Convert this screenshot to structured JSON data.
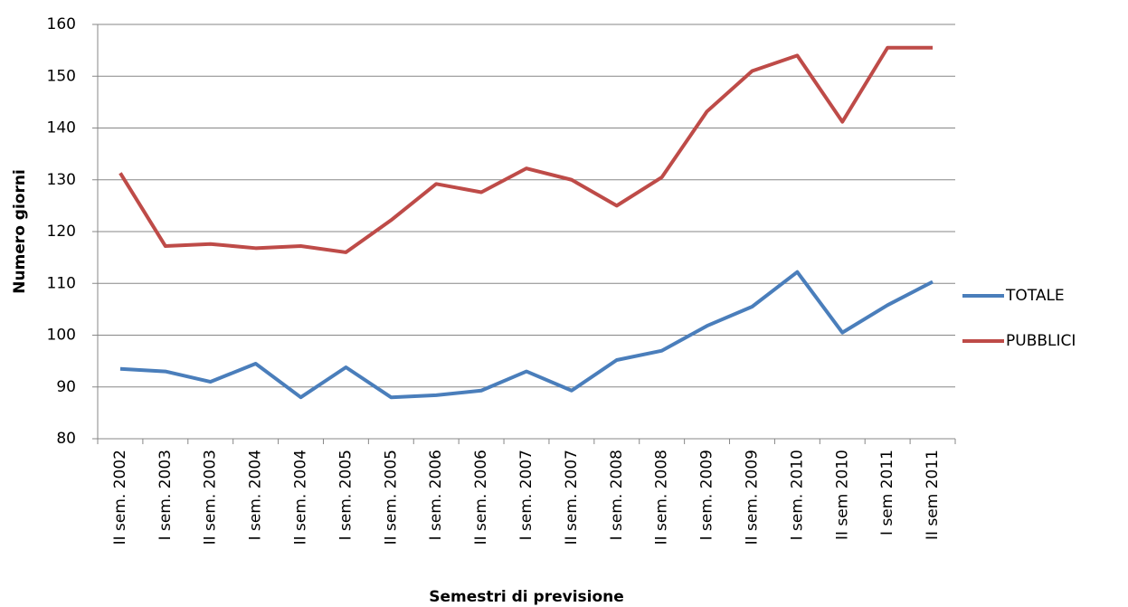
{
  "chart_data": {
    "type": "line",
    "y_label": "Numero giorni",
    "x_label": "Semestri di previsione",
    "categories": [
      "II sem. 2002",
      "I sem. 2003",
      "II sem. 2003",
      "I sem. 2004",
      "II sem. 2004",
      "I sem. 2005",
      "II sem. 2005",
      "I sem. 2006",
      "II sem. 2006",
      "I sem. 2007",
      "II sem. 2007",
      "I sem. 2008",
      "II sem. 2008",
      "I sem. 2009",
      "II sem. 2009",
      "I sem. 2010",
      "II sem 2010",
      "I sem 2011",
      "II sem 2011"
    ],
    "series": [
      {
        "name": "TOTALE",
        "color": "#4a7ebb",
        "values": [
          93.5,
          93,
          91,
          94.5,
          88,
          93.8,
          88,
          88.4,
          89.3,
          93,
          89.3,
          95.2,
          97,
          101.8,
          105.5,
          112.2,
          100.5,
          105.8,
          110.3
        ]
      },
      {
        "name": "PUBBLICI",
        "color": "#be4b48",
        "values": [
          131.3,
          117.2,
          117.6,
          116.8,
          117.2,
          116,
          122.2,
          129.2,
          127.6,
          132.2,
          130,
          125,
          130.5,
          143.2,
          151,
          154,
          141.2,
          155.5,
          155.5
        ]
      }
    ],
    "ylim": [
      80,
      160
    ],
    "yticks": [
      80,
      90,
      100,
      110,
      120,
      130,
      140,
      150,
      160
    ],
    "grid": true,
    "legend": "right"
  }
}
